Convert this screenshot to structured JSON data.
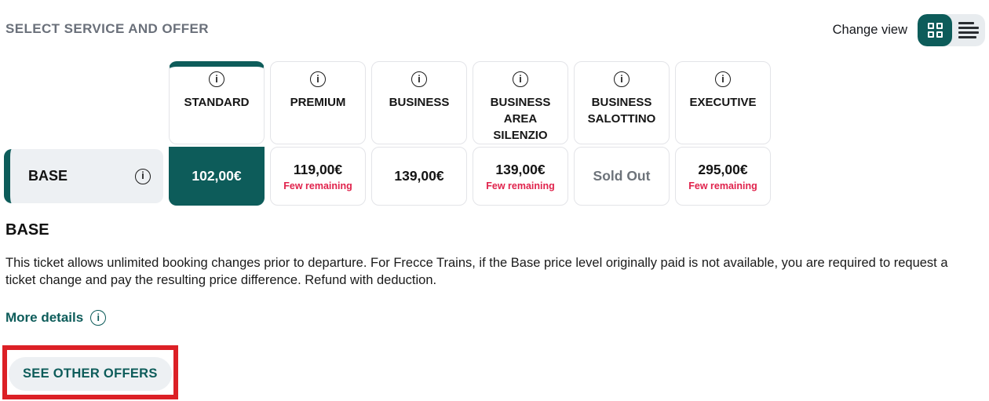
{
  "title": "SELECT SERVICE AND OFFER",
  "view_controls": {
    "label": "Change view",
    "grid_icon": "grid-view-icon",
    "list_icon": "list-view-icon",
    "active_view": "grid"
  },
  "icons": {
    "info_glyph": "i"
  },
  "service_columns": [
    {
      "name": "STANDARD",
      "price": "102,00€",
      "note": "",
      "state": "selected"
    },
    {
      "name": "PREMIUM",
      "price": "119,00€",
      "note": "Few remaining",
      "state": "available"
    },
    {
      "name": "BUSINESS",
      "price": "139,00€",
      "note": "",
      "state": "available"
    },
    {
      "name": "BUSINESS AREA SILENZIO",
      "price": "139,00€",
      "note": "Few remaining",
      "state": "available"
    },
    {
      "name": "BUSINESS SALOTTINO",
      "price": "Sold Out",
      "note": "",
      "state": "sold-out"
    },
    {
      "name": "EXECUTIVE",
      "price": "295,00€",
      "note": "Few remaining",
      "state": "available"
    }
  ],
  "offer_row": {
    "label": "BASE"
  },
  "offer_details": {
    "heading": "BASE",
    "description": "This ticket allows unlimited booking changes prior to departure. For Frecce Trains, if the Base price level originally paid is not available, you are required to request a ticket change and pay the resulting price difference. Refund with deduction.",
    "more_details_label": "More details"
  },
  "actions": {
    "see_other_offers": "SEE OTHER OFFERS"
  },
  "colors": {
    "teal": "#0d5c5a",
    "few_remaining_red": "#e0234c",
    "annotation_red": "#dc2026",
    "sold_out_gray": "#6d737a",
    "title_gray": "#6a707a"
  }
}
